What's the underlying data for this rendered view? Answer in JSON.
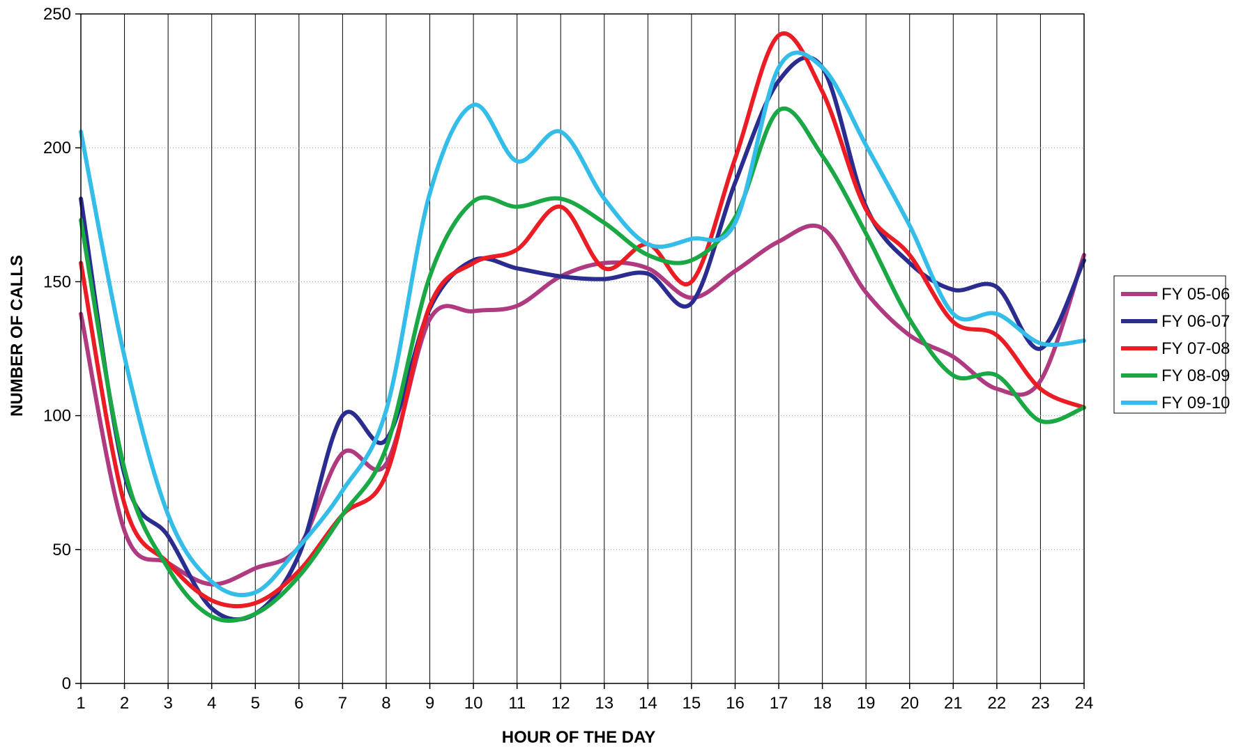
{
  "chart_data": {
    "type": "line",
    "title": "",
    "xlabel": "HOUR OF THE DAY",
    "ylabel": "NUMBER OF CALLS",
    "x": [
      1,
      2,
      3,
      4,
      5,
      6,
      7,
      8,
      9,
      10,
      11,
      12,
      13,
      14,
      15,
      16,
      17,
      18,
      19,
      20,
      21,
      22,
      23,
      24
    ],
    "ylim": [
      0,
      250
    ],
    "yticks": [
      0,
      50,
      100,
      150,
      200,
      250
    ],
    "grid": {
      "x": "solid vertical lines at each hour",
      "y": "dotted horizontal lines"
    },
    "legend_position": "right",
    "smooth": true,
    "series": [
      {
        "name": "FY 05-06",
        "color": "#b03a7f",
        "values": [
          138,
          57,
          45,
          37,
          43,
          51,
          86,
          82,
          136,
          139,
          141,
          152,
          157,
          155,
          144,
          154,
          165,
          170,
          146,
          130,
          122,
          110,
          113,
          160
        ]
      },
      {
        "name": "FY 06-07",
        "color": "#2a2d8f",
        "values": [
          181,
          78,
          55,
          28,
          26,
          48,
          100,
          91,
          140,
          158,
          155,
          152,
          151,
          153,
          142,
          187,
          225,
          230,
          178,
          157,
          147,
          148,
          125,
          158
        ]
      },
      {
        "name": "FY 07-08",
        "color": "#ec1c24",
        "values": [
          157,
          67,
          45,
          31,
          30,
          42,
          63,
          78,
          141,
          157,
          162,
          178,
          155,
          164,
          150,
          196,
          242,
          221,
          177,
          160,
          135,
          130,
          110,
          103
        ]
      },
      {
        "name": "FY 08-09",
        "color": "#1aa844",
        "values": [
          173,
          80,
          43,
          25,
          26,
          40,
          63,
          88,
          152,
          180,
          178,
          181,
          172,
          160,
          158,
          174,
          214,
          197,
          168,
          136,
          115,
          115,
          98,
          103
        ]
      },
      {
        "name": "FY 09-10",
        "color": "#33bde8",
        "values": [
          206,
          122,
          63,
          38,
          34,
          51,
          72,
          102,
          183,
          216,
          195,
          206,
          181,
          164,
          166,
          172,
          230,
          230,
          201,
          171,
          138,
          138,
          127,
          128
        ]
      }
    ]
  }
}
